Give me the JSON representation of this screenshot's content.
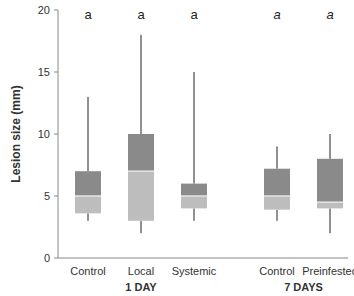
{
  "chart_data": {
    "type": "box",
    "y_label": "Lesion size (mm)",
    "categories": [
      "Control",
      "Local",
      "Systemic",
      "Control",
      "Preinfested"
    ],
    "category_groups": [
      "1 DAY",
      "1 DAY",
      "1 DAY",
      "7 DAYS",
      "7 DAYS"
    ],
    "significance_labels": [
      "a",
      "a",
      "a",
      "a",
      "a"
    ],
    "boxes": [
      {
        "min": 3,
        "q1": 3.6,
        "median": 5,
        "q3": 7,
        "max": 13
      },
      {
        "min": 2,
        "q1": 3,
        "median": 7,
        "q3": 10,
        "max": 18
      },
      {
        "min": 3,
        "q1": 4,
        "median": 5,
        "q3": 6,
        "max": 15
      },
      {
        "min": 3,
        "q1": 3.9,
        "median": 5,
        "q3": 7.2,
        "max": 9
      },
      {
        "min": 2,
        "q1": 4,
        "median": 4.5,
        "q3": 8,
        "max": 10
      }
    ],
    "ylim": [
      0,
      20
    ],
    "yticks": [
      0,
      5,
      10,
      15,
      20
    ],
    "grid": false
  }
}
